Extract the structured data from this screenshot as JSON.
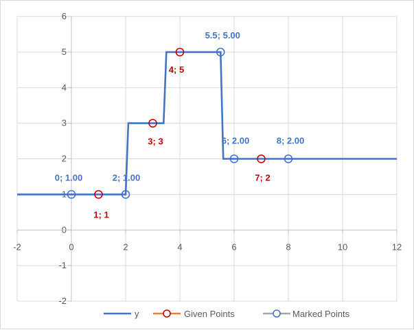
{
  "chart_data": {
    "type": "scatter",
    "xlim": [
      -2,
      12
    ],
    "ylim": [
      -2,
      6
    ],
    "x_ticks": [
      "-2",
      "0",
      "2",
      "4",
      "6",
      "8",
      "10",
      "12"
    ],
    "y_ticks": [
      "-2",
      "-1",
      "0",
      "1",
      "2",
      "3",
      "4",
      "5",
      "6"
    ],
    "grid": true,
    "legend_position": "bottom",
    "series": [
      {
        "name": "y",
        "kind": "line",
        "color": "#4472C4",
        "points": [
          [
            -2,
            1
          ],
          [
            2,
            1
          ],
          [
            2.1,
            3
          ],
          [
            3.4,
            3
          ],
          [
            3.5,
            5
          ],
          [
            5.5,
            5
          ],
          [
            5.6,
            2
          ],
          [
            12,
            2
          ]
        ]
      },
      {
        "name": "Given Points",
        "kind": "marker",
        "color": "#C00000",
        "legend_line_color": "#ED7D31",
        "label_color": "#C00000",
        "points": [
          [
            1,
            1
          ],
          [
            3,
            3
          ],
          [
            4,
            5
          ],
          [
            7,
            2
          ]
        ],
        "labels": [
          "1; 1",
          "3; 3",
          "4; 5",
          "7; 2"
        ]
      },
      {
        "name": "Marked Points",
        "kind": "marker",
        "color": "#4472C4",
        "legend_line_color": "#A5A5A5",
        "label_color": "#4472C4",
        "points": [
          [
            0,
            1
          ],
          [
            2,
            1
          ],
          [
            5.5,
            5
          ],
          [
            6,
            2
          ],
          [
            8,
            2
          ]
        ],
        "labels": [
          "0; 1.00",
          "2; 1.00",
          "5.5; 5.00",
          "6; 2.00",
          "8; 2.00"
        ]
      }
    ]
  }
}
